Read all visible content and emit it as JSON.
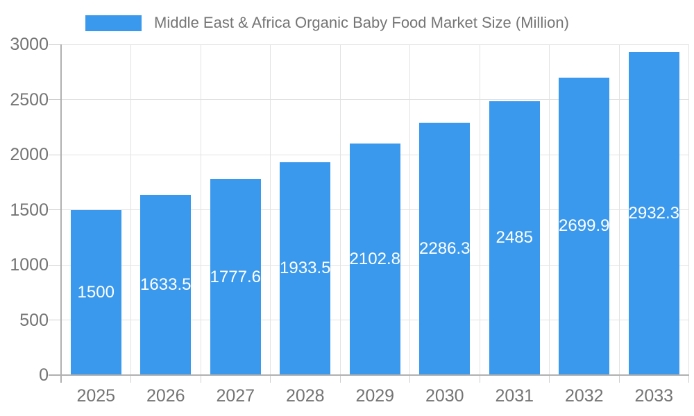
{
  "chart_data": {
    "type": "bar",
    "title": "Middle East & Africa Organic Baby Food Market Size (Million)",
    "categories": [
      "2025",
      "2026",
      "2027",
      "2028",
      "2029",
      "2030",
      "2031",
      "2032",
      "2033"
    ],
    "values": [
      1500,
      1633.5,
      1777.6,
      1933.5,
      2102.8,
      2286.3,
      2485,
      2699.9,
      2932.3
    ],
    "xlabel": "",
    "ylabel": "",
    "ylim": [
      0,
      3000
    ],
    "yticks": [
      0,
      500,
      1000,
      1500,
      2000,
      2500,
      3000
    ],
    "grid": true,
    "legend_position": "top",
    "value_labels_inside_bars": true
  },
  "colors": {
    "bar": "#3a99ec",
    "axis_text": "#747474",
    "grid_line": "#e2e2e2",
    "tick_line": "#cfcfcf",
    "axis_line": "#b0b0b0",
    "value_label": "#ffffff",
    "background": "#ffffff"
  }
}
